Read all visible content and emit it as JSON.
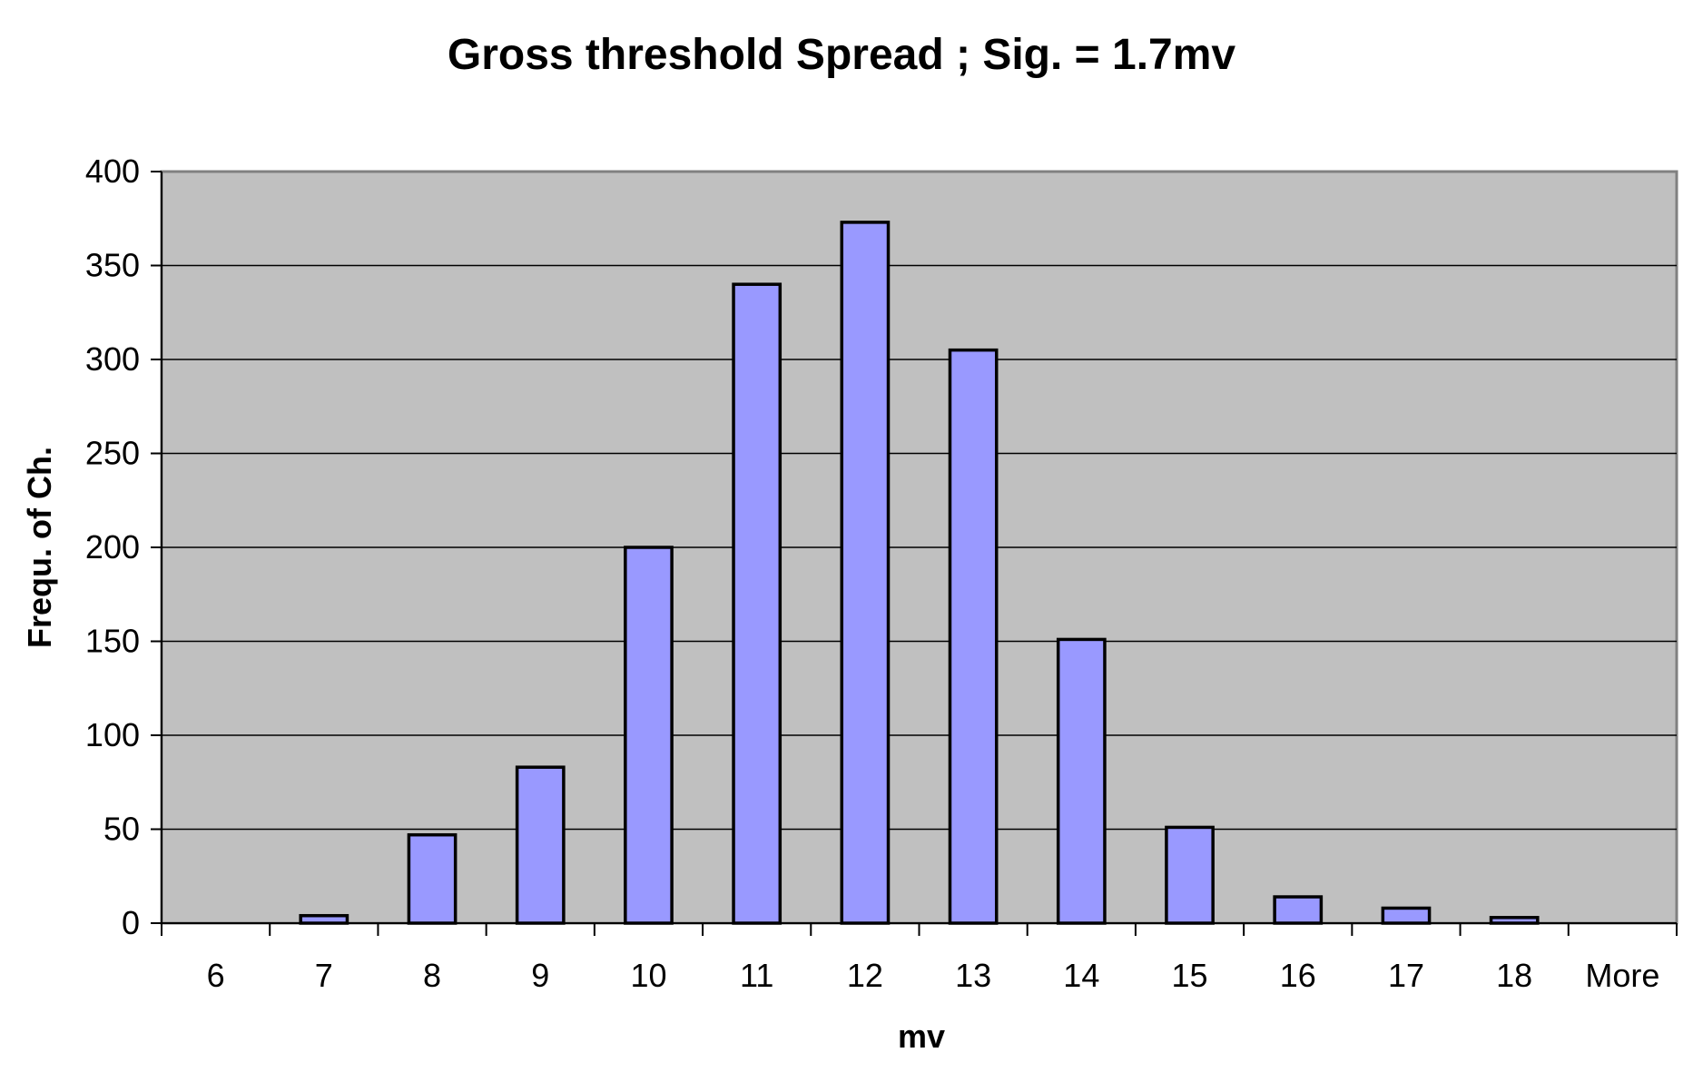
{
  "chart_data": {
    "type": "bar",
    "title": "Gross threshold Spread ; Sig. = 1.7mv",
    "xlabel": "mv",
    "ylabel": "Frequ. of Ch.",
    "categories": [
      "6",
      "7",
      "8",
      "9",
      "10",
      "11",
      "12",
      "13",
      "14",
      "15",
      "16",
      "17",
      "18",
      "More"
    ],
    "values": [
      0,
      4,
      47,
      83,
      200,
      340,
      373,
      305,
      151,
      51,
      14,
      8,
      3,
      0
    ],
    "ylim": [
      0,
      400
    ],
    "yticks": [
      "0",
      "50",
      "100",
      "150",
      "200",
      "250",
      "300",
      "350",
      "400"
    ],
    "grid": true,
    "legend": "none",
    "colors": {
      "bar_fill": "#9999ff",
      "bar_stroke": "#000000",
      "plot_background": "#c0c0c0",
      "gridline": "#000000"
    }
  }
}
